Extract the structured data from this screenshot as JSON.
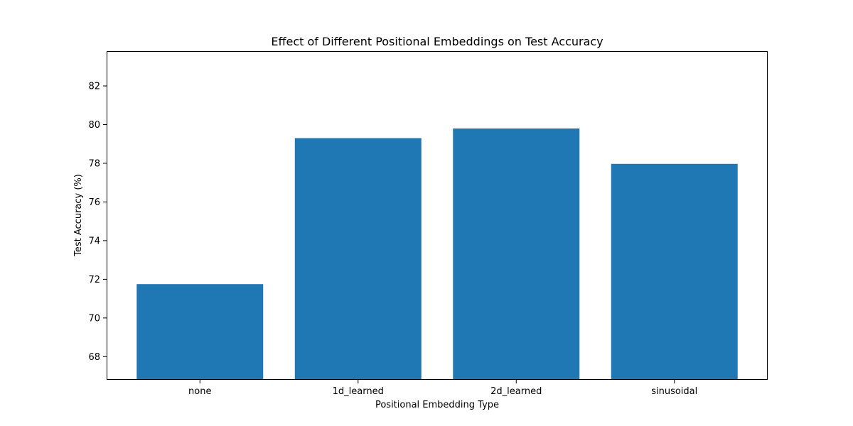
{
  "chart_data": {
    "type": "bar",
    "title": "Effect of Different Positional Embeddings on Test Accuracy",
    "xlabel": "Positional Embedding Type",
    "ylabel": "Test Accuracy (%)",
    "categories": [
      "none",
      "1d_learned",
      "2d_learned",
      "sinusoidal"
    ],
    "values": [
      71.75,
      79.3,
      79.8,
      77.97
    ],
    "ylim": [
      66.8,
      83.8
    ],
    "yticks": [
      68,
      70,
      72,
      74,
      76,
      78,
      80,
      82
    ],
    "bar_color": "#1f77b4",
    "grid": false,
    "legend": "none"
  }
}
